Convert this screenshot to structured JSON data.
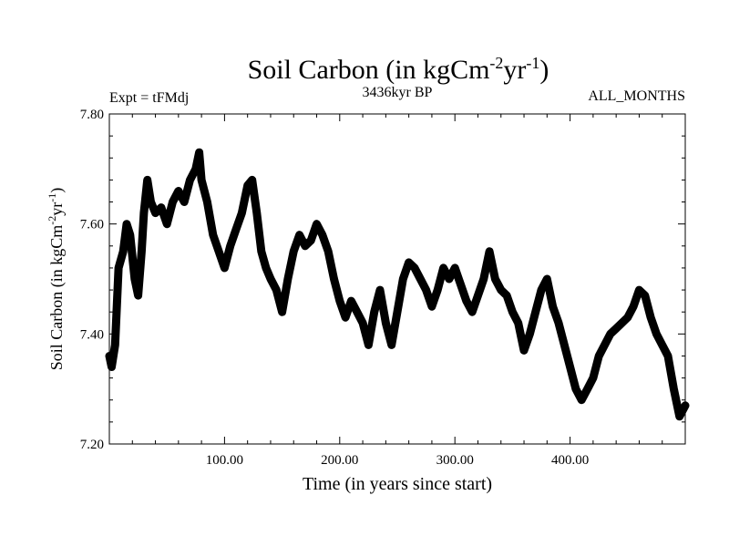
{
  "chart_data": {
    "type": "line",
    "title": "Soil Carbon (in kgCm",
    "title_sup1": "-2",
    "title_mid": "yr",
    "title_sup2": "-1",
    "title_end": ")",
    "subtitle_left": "Expt = tFMdj",
    "subtitle_center": "3436kyr BP",
    "subtitle_right": "ALL_MONTHS",
    "xlabel": "Time (in years since start)",
    "ylabel": "Soil Carbon (in kgCm",
    "ylabel_sup1": "-2",
    "ylabel_mid": "yr",
    "ylabel_sup2": "-1",
    "ylabel_end": ")",
    "xlim": [
      0,
      500
    ],
    "ylim": [
      7.2,
      7.8
    ],
    "x_ticks": [
      {
        "value": 100,
        "label": "100.00"
      },
      {
        "value": 200,
        "label": "200.00"
      },
      {
        "value": 300,
        "label": "300.00"
      },
      {
        "value": 400,
        "label": "400.00"
      }
    ],
    "y_ticks": [
      {
        "value": 7.2,
        "label": "7.20"
      },
      {
        "value": 7.4,
        "label": "7.40"
      },
      {
        "value": 7.6,
        "label": "7.60"
      },
      {
        "value": 7.8,
        "label": "7.80"
      }
    ],
    "grid": false,
    "line_color": "#000000",
    "series": [
      {
        "x": [
          0,
          2,
          5,
          8,
          12,
          15,
          18,
          22,
          25,
          28,
          30,
          33,
          36,
          40,
          45,
          50,
          55,
          60,
          65,
          70,
          75,
          78,
          80,
          85,
          90,
          95,
          100,
          105,
          110,
          115,
          120,
          124,
          128,
          132,
          136,
          140,
          145,
          150,
          155,
          160,
          165,
          170,
          175,
          180,
          185,
          190,
          195,
          200,
          205,
          210,
          215,
          220,
          225,
          230,
          235,
          240,
          245,
          250,
          255,
          260,
          265,
          270,
          275,
          280,
          285,
          290,
          295,
          300,
          305,
          310,
          315,
          320,
          325,
          330,
          335,
          340,
          345,
          350,
          355,
          360,
          365,
          370,
          375,
          380,
          385,
          390,
          395,
          400,
          405,
          410,
          415,
          420,
          425,
          430,
          435,
          440,
          445,
          450,
          455,
          460,
          465,
          470,
          475,
          480,
          485,
          490,
          495,
          500
        ],
        "values": [
          7.36,
          7.34,
          7.38,
          7.52,
          7.55,
          7.6,
          7.58,
          7.5,
          7.47,
          7.55,
          7.62,
          7.68,
          7.64,
          7.62,
          7.63,
          7.6,
          7.64,
          7.66,
          7.64,
          7.68,
          7.7,
          7.73,
          7.68,
          7.64,
          7.58,
          7.55,
          7.52,
          7.56,
          7.59,
          7.62,
          7.67,
          7.68,
          7.62,
          7.55,
          7.52,
          7.5,
          7.48,
          7.44,
          7.5,
          7.55,
          7.58,
          7.56,
          7.57,
          7.6,
          7.58,
          7.55,
          7.5,
          7.46,
          7.43,
          7.46,
          7.44,
          7.42,
          7.38,
          7.44,
          7.48,
          7.42,
          7.38,
          7.44,
          7.5,
          7.53,
          7.52,
          7.5,
          7.48,
          7.45,
          7.48,
          7.52,
          7.5,
          7.52,
          7.49,
          7.46,
          7.44,
          7.47,
          7.5,
          7.55,
          7.5,
          7.48,
          7.47,
          7.44,
          7.42,
          7.37,
          7.4,
          7.44,
          7.48,
          7.5,
          7.45,
          7.42,
          7.38,
          7.34,
          7.3,
          7.28,
          7.3,
          7.32,
          7.36,
          7.38,
          7.4,
          7.41,
          7.42,
          7.43,
          7.45,
          7.48,
          7.47,
          7.43,
          7.4,
          7.38,
          7.36,
          7.3,
          7.25,
          7.27
        ]
      }
    ]
  }
}
